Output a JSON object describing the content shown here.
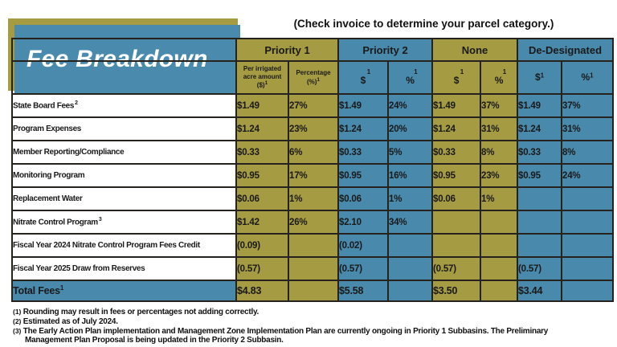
{
  "title": "Fee Breakdown",
  "note": "(Check invoice to determine your parcel category.)",
  "colors": {
    "olive": "#a59b42",
    "blue": "#4889ac",
    "border": "#26231f",
    "total_text": "#ffffff"
  },
  "groups": [
    {
      "label": "Priority 1",
      "color": "olive"
    },
    {
      "label": "Priority 2",
      "color": "blue"
    },
    {
      "label": "None",
      "color": "olive"
    },
    {
      "label": "De-Designated",
      "color": "blue"
    }
  ],
  "subheaders": [
    {
      "kind": "text",
      "color": "olive",
      "lines": [
        "Per irrigated",
        "acre amount",
        "($)"
      ],
      "sup": "1"
    },
    {
      "kind": "text",
      "color": "olive",
      "lines": [
        "Percentage",
        "(%)"
      ],
      "sup": "1"
    },
    {
      "kind": "stack",
      "color": "blue",
      "symbol": "$",
      "sup": "1"
    },
    {
      "kind": "stack",
      "color": "blue",
      "symbol": "%",
      "sup": "1"
    },
    {
      "kind": "stack",
      "color": "olive",
      "symbol": "$",
      "sup": "1"
    },
    {
      "kind": "stack",
      "color": "olive",
      "symbol": "%",
      "sup": "1"
    },
    {
      "kind": "inline",
      "color": "blue",
      "symbol": "$",
      "sup": "1"
    },
    {
      "kind": "inline",
      "color": "blue",
      "symbol": "%",
      "sup": "1"
    }
  ],
  "column_colors": [
    "olive",
    "olive",
    "blue",
    "blue",
    "olive",
    "olive",
    "blue",
    "blue"
  ],
  "rows": [
    {
      "label": "State Board Fees",
      "sup": "2",
      "values": [
        "$1.49",
        "27%",
        "$1.49",
        "24%",
        "$1.49",
        "37%",
        "$1.49",
        "37%"
      ]
    },
    {
      "label": "Program Expenses",
      "sup": "",
      "values": [
        "$1.24",
        "23%",
        "$1.24",
        "20%",
        "$1.24",
        "31%",
        "$1.24",
        "31%"
      ]
    },
    {
      "label": "Member Reporting/Compliance",
      "sup": "",
      "values": [
        "$0.33",
        "6%",
        "$0.33",
        "5%",
        "$0.33",
        "8%",
        "$0.33",
        "8%"
      ]
    },
    {
      "label": "Monitoring Program",
      "sup": "",
      "values": [
        "$0.95",
        "17%",
        "$0.95",
        "16%",
        "$0.95",
        "23%",
        "$0.95",
        "24%"
      ]
    },
    {
      "label": "Replacement Water",
      "sup": "",
      "values": [
        "$0.06",
        "1%",
        "$0.06",
        "1%",
        "$0.06",
        "1%",
        "",
        ""
      ]
    },
    {
      "label": "Nitrate Control Program",
      "sup": "3",
      "values": [
        "$1.42",
        "26%",
        "$2.10",
        "34%",
        "",
        "",
        "",
        ""
      ]
    },
    {
      "label": "Fiscal Year 2024 Nitrate Control Program Fees Credit",
      "sup": "",
      "values": [
        "(0.09)",
        "",
        "(0.02)",
        "",
        "",
        "",
        "",
        ""
      ]
    },
    {
      "label": "Fiscal Year 2025 Draw from Reserves",
      "sup": "",
      "values": [
        "(0.57)",
        "",
        "(0.57)",
        "",
        "(0.57)",
        "",
        "(0.57)",
        ""
      ]
    }
  ],
  "total_row": {
    "label": "Total Fees",
    "sup": "1",
    "values": [
      "$4.83",
      "",
      "$5.58",
      "",
      "$3.50",
      "",
      "$3.44",
      ""
    ]
  },
  "footnotes": [
    {
      "num": "(1)",
      "lines": [
        "Rounding may result in fees or percentages not adding correctly."
      ]
    },
    {
      "num": "(2)",
      "lines": [
        "Estimated as of July 2024."
      ]
    },
    {
      "num": "(3)",
      "lines": [
        "The Early Action Plan implementation and Management Zone Implementation Plan are currently ongoing in Priority 1 Subbasins. The Preliminary",
        "Management Plan Proposal is being updated in the Priority 2 Subbasin."
      ]
    }
  ]
}
